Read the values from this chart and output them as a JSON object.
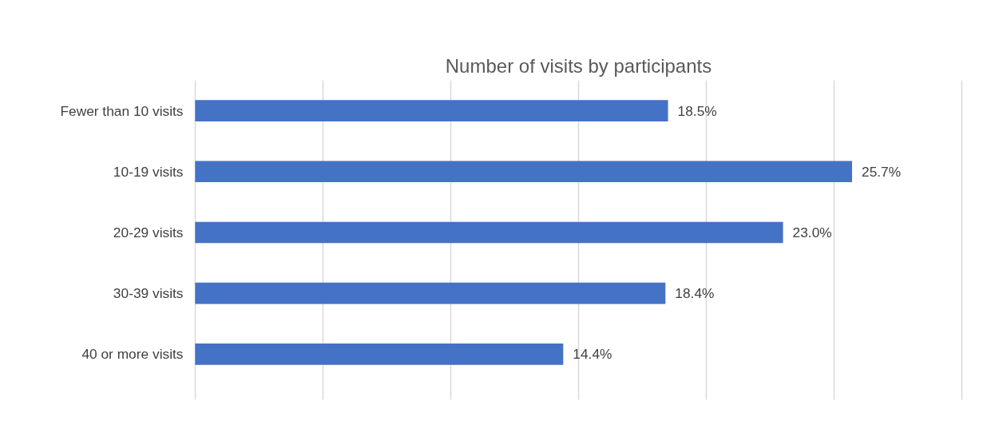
{
  "chart_data": {
    "type": "bar",
    "orientation": "horizontal",
    "title": "Number of visits by participants",
    "categories": [
      "Fewer than 10 visits",
      "10-19 visits",
      "20-29 visits",
      "30-39 visits",
      "40 or more visits"
    ],
    "values": [
      18.5,
      25.7,
      23.0,
      18.4,
      14.4
    ],
    "value_labels": [
      "18.5%",
      "25.7%",
      "23.0%",
      "18.4%",
      "14.4%"
    ],
    "color": "#4472c4",
    "xlim": [
      0,
      30
    ],
    "xticks": [
      {
        "value": 0,
        "label": null
      },
      {
        "value": 5,
        "label": null
      },
      {
        "value": 10,
        "label": null
      },
      {
        "value": 15,
        "label": null
      },
      {
        "value": 20,
        "label": null
      },
      {
        "value": 25,
        "label": null
      },
      {
        "value": 30,
        "label": null
      }
    ],
    "grid": "x",
    "tick_labels": "y",
    "legend": false
  }
}
